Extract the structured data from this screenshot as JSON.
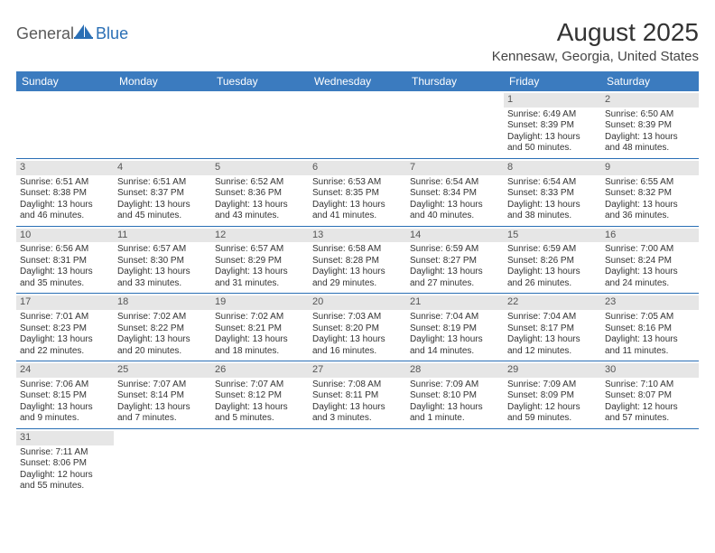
{
  "logo": {
    "part1": "General",
    "part2": "Blue"
  },
  "title": "August 2025",
  "location": "Kennesaw, Georgia, United States",
  "colors": {
    "header_bg": "#3b7bbf",
    "header_text": "#ffffff",
    "daynum_bg": "#e6e6e6",
    "row_border": "#2a6fb5",
    "logo_gray": "#5a5a5a",
    "logo_blue": "#2a6fb5"
  },
  "day_headers": [
    "Sunday",
    "Monday",
    "Tuesday",
    "Wednesday",
    "Thursday",
    "Friday",
    "Saturday"
  ],
  "weeks": [
    [
      null,
      null,
      null,
      null,
      null,
      {
        "n": "1",
        "sr": "Sunrise: 6:49 AM",
        "ss": "Sunset: 8:39 PM",
        "d1": "Daylight: 13 hours",
        "d2": "and 50 minutes."
      },
      {
        "n": "2",
        "sr": "Sunrise: 6:50 AM",
        "ss": "Sunset: 8:39 PM",
        "d1": "Daylight: 13 hours",
        "d2": "and 48 minutes."
      }
    ],
    [
      {
        "n": "3",
        "sr": "Sunrise: 6:51 AM",
        "ss": "Sunset: 8:38 PM",
        "d1": "Daylight: 13 hours",
        "d2": "and 46 minutes."
      },
      {
        "n": "4",
        "sr": "Sunrise: 6:51 AM",
        "ss": "Sunset: 8:37 PM",
        "d1": "Daylight: 13 hours",
        "d2": "and 45 minutes."
      },
      {
        "n": "5",
        "sr": "Sunrise: 6:52 AM",
        "ss": "Sunset: 8:36 PM",
        "d1": "Daylight: 13 hours",
        "d2": "and 43 minutes."
      },
      {
        "n": "6",
        "sr": "Sunrise: 6:53 AM",
        "ss": "Sunset: 8:35 PM",
        "d1": "Daylight: 13 hours",
        "d2": "and 41 minutes."
      },
      {
        "n": "7",
        "sr": "Sunrise: 6:54 AM",
        "ss": "Sunset: 8:34 PM",
        "d1": "Daylight: 13 hours",
        "d2": "and 40 minutes."
      },
      {
        "n": "8",
        "sr": "Sunrise: 6:54 AM",
        "ss": "Sunset: 8:33 PM",
        "d1": "Daylight: 13 hours",
        "d2": "and 38 minutes."
      },
      {
        "n": "9",
        "sr": "Sunrise: 6:55 AM",
        "ss": "Sunset: 8:32 PM",
        "d1": "Daylight: 13 hours",
        "d2": "and 36 minutes."
      }
    ],
    [
      {
        "n": "10",
        "sr": "Sunrise: 6:56 AM",
        "ss": "Sunset: 8:31 PM",
        "d1": "Daylight: 13 hours",
        "d2": "and 35 minutes."
      },
      {
        "n": "11",
        "sr": "Sunrise: 6:57 AM",
        "ss": "Sunset: 8:30 PM",
        "d1": "Daylight: 13 hours",
        "d2": "and 33 minutes."
      },
      {
        "n": "12",
        "sr": "Sunrise: 6:57 AM",
        "ss": "Sunset: 8:29 PM",
        "d1": "Daylight: 13 hours",
        "d2": "and 31 minutes."
      },
      {
        "n": "13",
        "sr": "Sunrise: 6:58 AM",
        "ss": "Sunset: 8:28 PM",
        "d1": "Daylight: 13 hours",
        "d2": "and 29 minutes."
      },
      {
        "n": "14",
        "sr": "Sunrise: 6:59 AM",
        "ss": "Sunset: 8:27 PM",
        "d1": "Daylight: 13 hours",
        "d2": "and 27 minutes."
      },
      {
        "n": "15",
        "sr": "Sunrise: 6:59 AM",
        "ss": "Sunset: 8:26 PM",
        "d1": "Daylight: 13 hours",
        "d2": "and 26 minutes."
      },
      {
        "n": "16",
        "sr": "Sunrise: 7:00 AM",
        "ss": "Sunset: 8:24 PM",
        "d1": "Daylight: 13 hours",
        "d2": "and 24 minutes."
      }
    ],
    [
      {
        "n": "17",
        "sr": "Sunrise: 7:01 AM",
        "ss": "Sunset: 8:23 PM",
        "d1": "Daylight: 13 hours",
        "d2": "and 22 minutes."
      },
      {
        "n": "18",
        "sr": "Sunrise: 7:02 AM",
        "ss": "Sunset: 8:22 PM",
        "d1": "Daylight: 13 hours",
        "d2": "and 20 minutes."
      },
      {
        "n": "19",
        "sr": "Sunrise: 7:02 AM",
        "ss": "Sunset: 8:21 PM",
        "d1": "Daylight: 13 hours",
        "d2": "and 18 minutes."
      },
      {
        "n": "20",
        "sr": "Sunrise: 7:03 AM",
        "ss": "Sunset: 8:20 PM",
        "d1": "Daylight: 13 hours",
        "d2": "and 16 minutes."
      },
      {
        "n": "21",
        "sr": "Sunrise: 7:04 AM",
        "ss": "Sunset: 8:19 PM",
        "d1": "Daylight: 13 hours",
        "d2": "and 14 minutes."
      },
      {
        "n": "22",
        "sr": "Sunrise: 7:04 AM",
        "ss": "Sunset: 8:17 PM",
        "d1": "Daylight: 13 hours",
        "d2": "and 12 minutes."
      },
      {
        "n": "23",
        "sr": "Sunrise: 7:05 AM",
        "ss": "Sunset: 8:16 PM",
        "d1": "Daylight: 13 hours",
        "d2": "and 11 minutes."
      }
    ],
    [
      {
        "n": "24",
        "sr": "Sunrise: 7:06 AM",
        "ss": "Sunset: 8:15 PM",
        "d1": "Daylight: 13 hours",
        "d2": "and 9 minutes."
      },
      {
        "n": "25",
        "sr": "Sunrise: 7:07 AM",
        "ss": "Sunset: 8:14 PM",
        "d1": "Daylight: 13 hours",
        "d2": "and 7 minutes."
      },
      {
        "n": "26",
        "sr": "Sunrise: 7:07 AM",
        "ss": "Sunset: 8:12 PM",
        "d1": "Daylight: 13 hours",
        "d2": "and 5 minutes."
      },
      {
        "n": "27",
        "sr": "Sunrise: 7:08 AM",
        "ss": "Sunset: 8:11 PM",
        "d1": "Daylight: 13 hours",
        "d2": "and 3 minutes."
      },
      {
        "n": "28",
        "sr": "Sunrise: 7:09 AM",
        "ss": "Sunset: 8:10 PM",
        "d1": "Daylight: 13 hours",
        "d2": "and 1 minute."
      },
      {
        "n": "29",
        "sr": "Sunrise: 7:09 AM",
        "ss": "Sunset: 8:09 PM",
        "d1": "Daylight: 12 hours",
        "d2": "and 59 minutes."
      },
      {
        "n": "30",
        "sr": "Sunrise: 7:10 AM",
        "ss": "Sunset: 8:07 PM",
        "d1": "Daylight: 12 hours",
        "d2": "and 57 minutes."
      }
    ],
    [
      {
        "n": "31",
        "sr": "Sunrise: 7:11 AM",
        "ss": "Sunset: 8:06 PM",
        "d1": "Daylight: 12 hours",
        "d2": "and 55 minutes."
      },
      null,
      null,
      null,
      null,
      null,
      null
    ]
  ]
}
